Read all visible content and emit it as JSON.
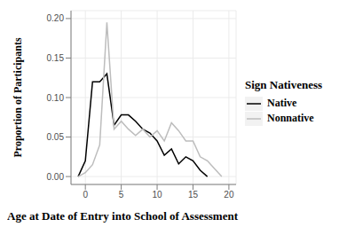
{
  "chart_data": {
    "type": "line",
    "x_label": "Age at Date of Entry into School of Assessment",
    "y_label": "Proportion of Participants",
    "legend_title": "Sign Nativeness",
    "legend": "right",
    "grid": true,
    "x": [
      -1,
      0,
      1,
      2,
      3,
      4,
      5,
      6,
      7,
      8,
      9,
      10,
      11,
      12,
      13,
      14,
      15,
      16,
      17,
      18,
      19
    ],
    "series": [
      {
        "name": "Native",
        "color": "#000000",
        "values": [
          0.0,
          0.02,
          0.12,
          0.12,
          0.13,
          0.065,
          0.078,
          0.078,
          0.07,
          0.06,
          0.055,
          0.045,
          0.027,
          0.035,
          0.016,
          0.025,
          0.02,
          0.008,
          0.0,
          null,
          null
        ]
      },
      {
        "name": "Nonnative",
        "color": "#bdbdbd",
        "values": [
          0.0,
          0.005,
          0.015,
          0.04,
          0.195,
          0.06,
          0.07,
          0.06,
          0.052,
          0.06,
          0.05,
          0.058,
          0.045,
          0.068,
          0.058,
          0.045,
          0.045,
          0.025,
          0.02,
          0.01,
          0.0
        ]
      }
    ],
    "xlim": [
      -2,
      21
    ],
    "xticks": [
      0,
      5,
      10,
      15,
      20
    ],
    "ylim": [
      -0.01,
      0.21
    ],
    "yticks": [
      {
        "value": 0,
        "label": "0.00"
      },
      {
        "value": 0.05,
        "label": "0.05"
      },
      {
        "value": 0.1,
        "label": "0.10"
      },
      {
        "value": 0.15,
        "label": "0.15"
      },
      {
        "value": 0.2,
        "label": "0.20"
      }
    ]
  }
}
